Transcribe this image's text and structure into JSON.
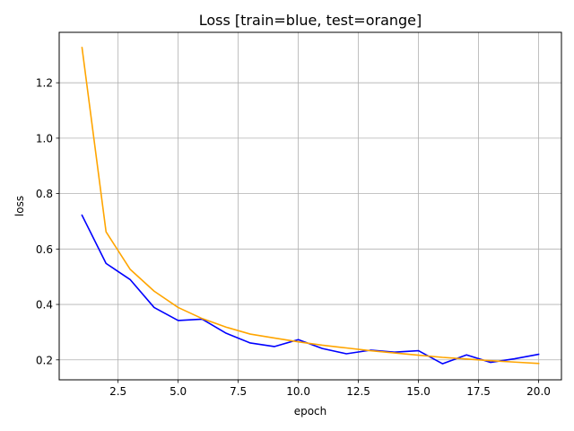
{
  "chart_data": {
    "type": "line",
    "title": "Loss [train=blue, test=orange]",
    "xlabel": "epoch",
    "ylabel": "loss",
    "xlim": [
      0.05,
      20.95
    ],
    "ylim": [
      0.128,
      1.382
    ],
    "xticks": [
      2.5,
      5.0,
      7.5,
      10.0,
      12.5,
      15.0,
      17.5,
      20.0
    ],
    "xtick_labels": [
      "2.5",
      "5.0",
      "7.5",
      "10.0",
      "12.5",
      "15.0",
      "17.5",
      "20.0"
    ],
    "yticks": [
      0.2,
      0.4,
      0.6,
      0.8,
      1.0,
      1.2
    ],
    "ytick_labels": [
      "0.2",
      "0.4",
      "0.6",
      "0.8",
      "1.0",
      "1.2"
    ],
    "grid": true,
    "legend": "none",
    "x": [
      1,
      2,
      3,
      4,
      5,
      6,
      7,
      8,
      9,
      10,
      11,
      12,
      13,
      14,
      15,
      16,
      17,
      18,
      19,
      20
    ],
    "series": [
      {
        "color": "#0000ff",
        "values": [
          0.722,
          0.548,
          0.49,
          0.389,
          0.342,
          0.347,
          0.296,
          0.261,
          0.248,
          0.273,
          0.241,
          0.222,
          0.235,
          0.228,
          0.233,
          0.186,
          0.218,
          0.191,
          0.204,
          0.22
        ]
      },
      {
        "color": "#ffa500",
        "values": [
          1.327,
          0.662,
          0.527,
          0.448,
          0.389,
          0.349,
          0.318,
          0.293,
          0.279,
          0.265,
          0.253,
          0.243,
          0.233,
          0.225,
          0.217,
          0.209,
          0.203,
          0.197,
          0.192,
          0.187
        ]
      }
    ],
    "colors": {
      "grid": "#b0b0b0",
      "axes": "#000000"
    }
  }
}
